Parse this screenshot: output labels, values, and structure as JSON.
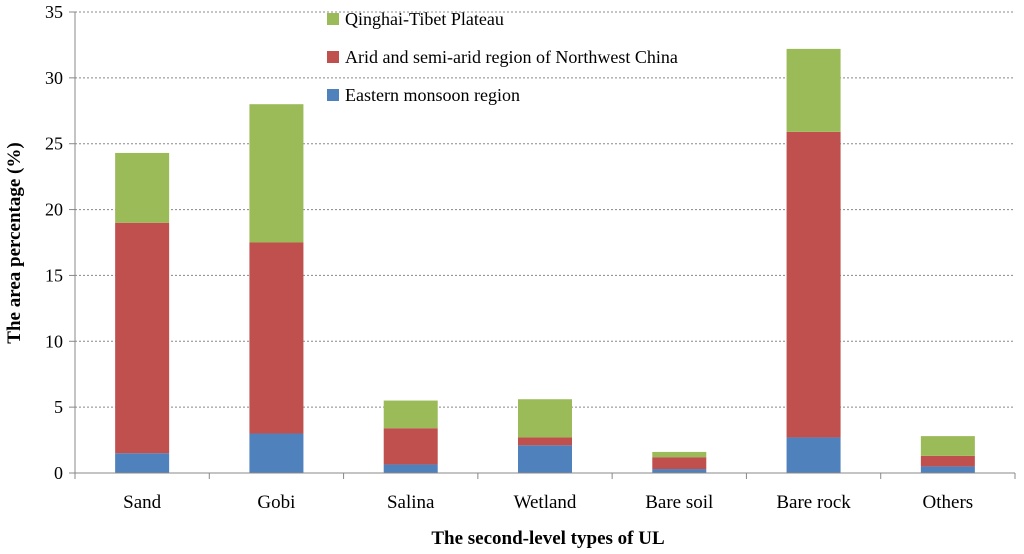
{
  "chart_data": {
    "type": "bar",
    "stacked": true,
    "categories": [
      "Sand",
      "Gobi",
      "Salina",
      "Wetland",
      "Bare soil",
      "Bare rock",
      "Others"
    ],
    "series": [
      {
        "name": "Eastern monsoon region",
        "color": "#4f81bd",
        "values": [
          1.5,
          3.0,
          0.65,
          2.1,
          0.3,
          2.7,
          0.5
        ]
      },
      {
        "name": "Arid and semi-arid region of Northwest China",
        "color": "#c0504d",
        "values": [
          17.5,
          14.5,
          2.75,
          0.6,
          0.9,
          23.2,
          0.8
        ]
      },
      {
        "name": "Qinghai-Tibet Plateau",
        "color": "#9bbb59",
        "values": [
          5.3,
          10.5,
          2.1,
          2.9,
          0.4,
          6.3,
          1.5
        ]
      }
    ],
    "xlabel": "The second-level types of UL",
    "ylabel": "The area percentage (%)",
    "ylim": [
      0,
      35
    ],
    "yticks": [
      0,
      5,
      10,
      15,
      20,
      25,
      30,
      35
    ],
    "grid": "horizontal dashed",
    "legend_position": "top-center"
  }
}
